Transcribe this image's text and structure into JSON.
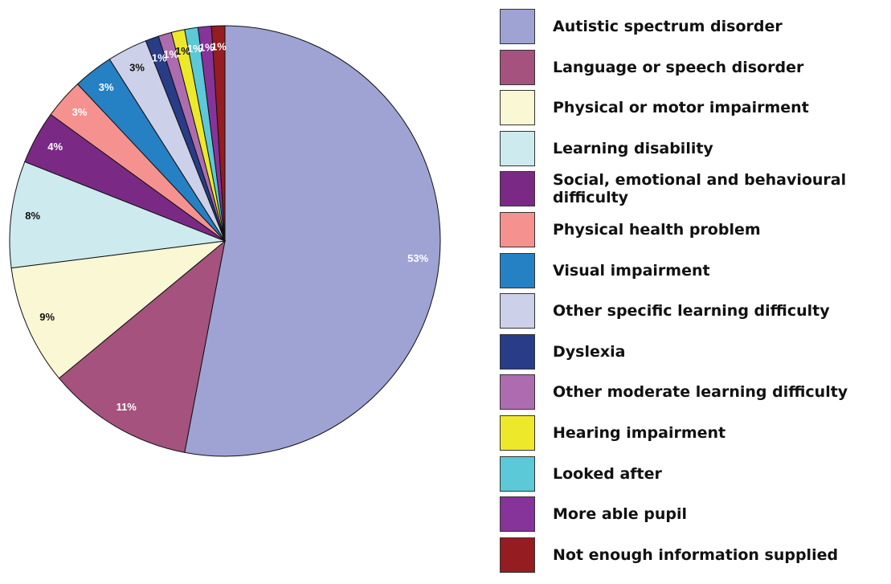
{
  "chart_data": {
    "type": "pie",
    "categories": [
      "Autistic spectrum disorder",
      "Language or speech disorder",
      "Physical or motor impairment",
      "Learning disability",
      "Social, emotional and behavioural difficulty",
      "Physical health problem",
      "Visual impairment",
      "Other specific learning difficulty",
      "Dyslexia",
      "Other moderate learning difficulty",
      "Hearing impairment",
      "Looked after",
      "More able pupil",
      "Not enough information supplied"
    ],
    "values": [
      53,
      11,
      9,
      8,
      4,
      3,
      3,
      3,
      1,
      1,
      1,
      1,
      1,
      1
    ],
    "value_labels": [
      "53%",
      "11%",
      "9%",
      "8%",
      "4%",
      "3%",
      "3%",
      "3%",
      "1%",
      "1%",
      "1%",
      "1%",
      "1%",
      "1%"
    ],
    "colors": [
      "#9ea3d4",
      "#a5527e",
      "#f9f7d4",
      "#cdeaee",
      "#7a2a85",
      "#f5928f",
      "#2680c4",
      "#ccd0e8",
      "#283c87",
      "#ae6cb0",
      "#eee82a",
      "#5bc9d8",
      "#86349a",
      "#951c20"
    ],
    "legend": "right"
  }
}
